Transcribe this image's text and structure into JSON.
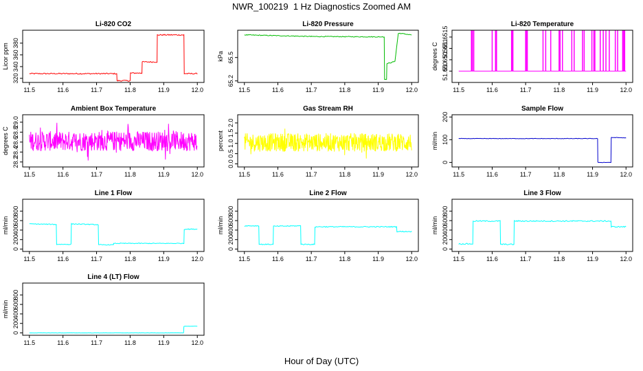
{
  "figure": {
    "title": "NWR_100219  1 Hz Diagnostics Zoomed AM",
    "xlabel": "Hour of Day (UTC)"
  },
  "chart_data": [
    {
      "type": "line",
      "title": "Li-820 CO2",
      "ylabel": "Licor ppm",
      "color": "#ff0000",
      "xlim": [
        11.48,
        12.02
      ],
      "xticks": [
        11.5,
        11.6,
        11.7,
        11.8,
        11.9,
        12.0
      ],
      "ylim": [
        313,
        402
      ],
      "yticks": [
        320,
        340,
        360,
        380
      ],
      "series": [
        {
          "noise": 1.0,
          "x": [
            11.5,
            11.76,
            11.761,
            11.8,
            11.801,
            11.835,
            11.836,
            11.88,
            11.881,
            11.96,
            11.961,
            12.0
          ],
          "y": [
            328,
            328,
            316,
            316,
            329,
            329,
            348,
            348,
            394,
            394,
            328,
            328
          ]
        }
      ]
    },
    {
      "type": "line",
      "title": "Li-820 Pressure",
      "ylabel": "kPa",
      "color": "#00bb00",
      "xlim": [
        11.48,
        12.02
      ],
      "xticks": [
        11.5,
        11.6,
        11.7,
        11.8,
        11.9,
        12.0
      ],
      "ylim": [
        65.18,
        65.85
      ],
      "yticks": [
        65.2,
        65.5
      ],
      "yticklabels": [
        "65.2",
        "65.5"
      ],
      "series": [
        {
          "noise": 0.005,
          "x": [
            11.5,
            11.7,
            11.9,
            11.918,
            11.919,
            11.925,
            11.926,
            11.95,
            11.96,
            11.965,
            12.0
          ],
          "y": [
            65.79,
            65.77,
            65.765,
            65.765,
            65.22,
            65.22,
            65.42,
            65.45,
            65.81,
            65.81,
            65.79
          ]
        }
      ]
    },
    {
      "type": "spikes",
      "title": "Li-820 Temperature",
      "ylabel": "degrees C",
      "color": "#ff00ff",
      "xlim": [
        11.48,
        12.02
      ],
      "xticks": [
        11.5,
        11.6,
        11.7,
        11.8,
        11.9,
        12.0
      ],
      "ylim": [
        51.6495,
        51.6518
      ],
      "yticks": [
        51.65,
        51.6505,
        51.651,
        51.6515
      ],
      "yticklabels": [
        "51.650",
        "51.6505",
        "51.651",
        "51.6515"
      ],
      "base": 51.65,
      "top": 51.6518,
      "spikes": [
        11.538,
        11.541,
        11.545,
        11.6,
        11.61,
        11.613,
        11.658,
        11.66,
        11.662,
        11.7,
        11.702,
        11.705,
        11.752,
        11.76,
        11.775,
        11.8,
        11.803,
        11.81,
        11.838,
        11.845,
        11.87,
        11.875,
        11.898,
        11.904,
        11.907,
        11.923,
        11.932,
        11.94,
        11.95,
        11.968,
        11.975,
        11.99,
        11.993,
        11.996
      ]
    },
    {
      "type": "noise",
      "title": "Ambient Box Temperature",
      "ylabel": "degrees C",
      "color": "#ff00ff",
      "xlim": [
        11.48,
        12.02
      ],
      "xticks": [
        11.5,
        11.6,
        11.7,
        11.8,
        11.9,
        12.0
      ],
      "ylim": [
        28.1,
        29.15
      ],
      "yticks": [
        28.2,
        28.4,
        28.6,
        28.8,
        29.0
      ],
      "yticklabels": [
        "28.2",
        "28.4",
        "28.6",
        "28.8",
        "29.0"
      ],
      "center": 28.62,
      "spread": 0.2,
      "x0": 11.5,
      "x1": 12.0
    },
    {
      "type": "noise",
      "title": "Gas Stream RH",
      "ylabel": "percent",
      "color": "#ffff00",
      "xlim": [
        11.48,
        12.02
      ],
      "xticks": [
        11.5,
        11.6,
        11.7,
        11.8,
        11.9,
        12.0
      ],
      "ylim": [
        -0.15,
        2.4
      ],
      "yticks": [
        0.0,
        0.5,
        1.0,
        1.5,
        2.0
      ],
      "yticklabels": [
        "0.0",
        "0.5",
        "1.0",
        "1.5",
        "2.0"
      ],
      "center": 1.05,
      "spread": 0.45,
      "x0": 11.5,
      "x1": 12.0
    },
    {
      "type": "line",
      "title": "Sample Flow",
      "ylabel": "ml/min",
      "color": "#0000cc",
      "xlim": [
        11.48,
        12.02
      ],
      "xticks": [
        11.5,
        11.6,
        11.7,
        11.8,
        11.9,
        12.0
      ],
      "ylim": [
        -20,
        210
      ],
      "yticks": [
        0,
        100,
        200
      ],
      "series": [
        {
          "noise": 1.0,
          "x": [
            11.5,
            11.915,
            11.916,
            11.955,
            11.956,
            12.0
          ],
          "y": [
            105,
            105,
            0,
            0,
            110,
            108
          ]
        }
      ]
    },
    {
      "type": "line",
      "title": "Line 1 Flow",
      "ylabel": "ml/min",
      "color": "#00ffff",
      "xlim": [
        11.48,
        12.02
      ],
      "xticks": [
        11.5,
        11.6,
        11.7,
        11.8,
        11.9,
        12.0
      ],
      "ylim": [
        -50,
        1050
      ],
      "yticks": [
        0,
        200,
        400,
        600,
        800
      ],
      "series": [
        {
          "noise": 8,
          "x": [
            11.5,
            11.58,
            11.581,
            11.624,
            11.625,
            11.705,
            11.706,
            11.75,
            11.751,
            11.96,
            11.961,
            12.0
          ],
          "y": [
            530,
            520,
            100,
            100,
            530,
            515,
            90,
            90,
            120,
            120,
            420,
            420
          ]
        }
      ]
    },
    {
      "type": "line",
      "title": "Line 2 Flow",
      "ylabel": "ml/min",
      "color": "#00ffff",
      "xlim": [
        11.48,
        12.02
      ],
      "xticks": [
        11.5,
        11.6,
        11.7,
        11.8,
        11.9,
        12.0
      ],
      "ylim": [
        -50,
        1050
      ],
      "yticks": [
        0,
        200,
        400,
        600,
        800
      ],
      "series": [
        {
          "noise": 10,
          "x": [
            11.5,
            11.543,
            11.544,
            11.586,
            11.587,
            11.668,
            11.669,
            11.71,
            11.711,
            11.955,
            11.956,
            12.0
          ],
          "y": [
            490,
            490,
            100,
            100,
            480,
            490,
            100,
            100,
            470,
            470,
            370,
            370
          ]
        }
      ]
    },
    {
      "type": "line",
      "title": "Line 3 Flow",
      "ylabel": "ml/min",
      "color": "#00ffff",
      "xlim": [
        11.48,
        12.02
      ],
      "xticks": [
        11.5,
        11.6,
        11.7,
        11.8,
        11.9,
        12.0
      ],
      "ylim": [
        -50,
        1050
      ],
      "yticks": [
        0,
        200,
        400,
        600,
        800
      ],
      "series": [
        {
          "noise": 12,
          "x": [
            11.5,
            11.542,
            11.543,
            11.624,
            11.625,
            11.665,
            11.666,
            11.955,
            11.956,
            12.0
          ],
          "y": [
            110,
            110,
            590,
            590,
            100,
            100,
            590,
            590,
            470,
            470
          ]
        }
      ]
    },
    {
      "type": "line",
      "title": "Line 4 (LT) Flow",
      "ylabel": "ml/min",
      "color": "#00ffff",
      "xlim": [
        11.48,
        12.02
      ],
      "xticks": [
        11.5,
        11.6,
        11.7,
        11.8,
        11.9,
        12.0
      ],
      "ylim": [
        -50,
        1050
      ],
      "yticks": [
        0,
        200,
        400,
        600,
        800
      ],
      "series": [
        {
          "noise": 2,
          "x": [
            11.5,
            11.959,
            11.96,
            12.0
          ],
          "y": [
            0,
            0,
            140,
            140
          ]
        }
      ]
    }
  ]
}
